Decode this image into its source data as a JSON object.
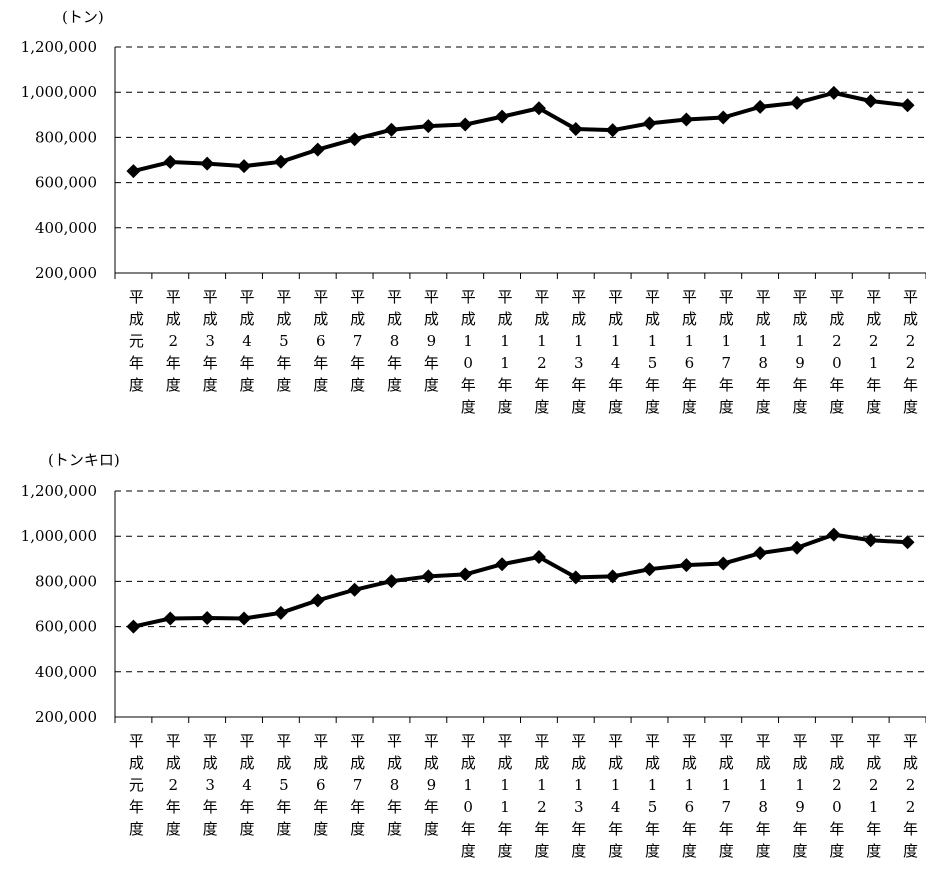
{
  "chart_data": [
    {
      "type": "line",
      "unit_label": "(トン)",
      "categories": [
        "平成元年度",
        "平成2年度",
        "平成3年度",
        "平成4年度",
        "平成5年度",
        "平成6年度",
        "平成7年度",
        "平成8年度",
        "平成9年度",
        "平成10年度",
        "平成11年度",
        "平成12年度",
        "平成13年度",
        "平成14年度",
        "平成15年度",
        "平成16年度",
        "平成17年度",
        "平成18年度",
        "平成19年度",
        "平成20年度",
        "平成21年度",
        "平成22年度"
      ],
      "values": [
        651000,
        691000,
        684000,
        673000,
        692000,
        746000,
        792000,
        834000,
        850000,
        857000,
        892000,
        929000,
        837000,
        832000,
        862000,
        879000,
        888000,
        935000,
        953000,
        997000,
        961000,
        942000
      ],
      "ylim": [
        200000,
        1200000
      ],
      "yticks": [
        "1,200,000",
        "1,000,000",
        "800,000",
        "600,000",
        "400,000",
        "200,000"
      ],
      "ytick_values": [
        1200000,
        1000000,
        800000,
        600000,
        400000,
        200000
      ],
      "grid": "dashed horizontal",
      "legend": "none",
      "color": "#000000"
    },
    {
      "type": "line",
      "unit_label": "(トンキロ)",
      "categories": [
        "平成元年度",
        "平成2年度",
        "平成3年度",
        "平成4年度",
        "平成5年度",
        "平成6年度",
        "平成7年度",
        "平成8年度",
        "平成9年度",
        "平成10年度",
        "平成11年度",
        "平成12年度",
        "平成13年度",
        "平成14年度",
        "平成15年度",
        "平成16年度",
        "平成17年度",
        "平成18年度",
        "平成19年度",
        "平成20年度",
        "平成21年度",
        "平成22年度"
      ],
      "values": [
        600000,
        636000,
        638000,
        636000,
        661000,
        716000,
        763000,
        801000,
        822000,
        831000,
        876000,
        908000,
        818000,
        822000,
        854000,
        872000,
        879000,
        925000,
        949000,
        1007000,
        982000,
        973000
      ],
      "ylim": [
        200000,
        1200000
      ],
      "yticks": [
        "1,200,000",
        "1,000,000",
        "800,000",
        "600,000",
        "400,000",
        "200,000"
      ],
      "ytick_values": [
        1200000,
        1000000,
        800000,
        600000,
        400000,
        200000
      ],
      "grid": "dashed horizontal",
      "legend": "none",
      "color": "#000000"
    }
  ]
}
